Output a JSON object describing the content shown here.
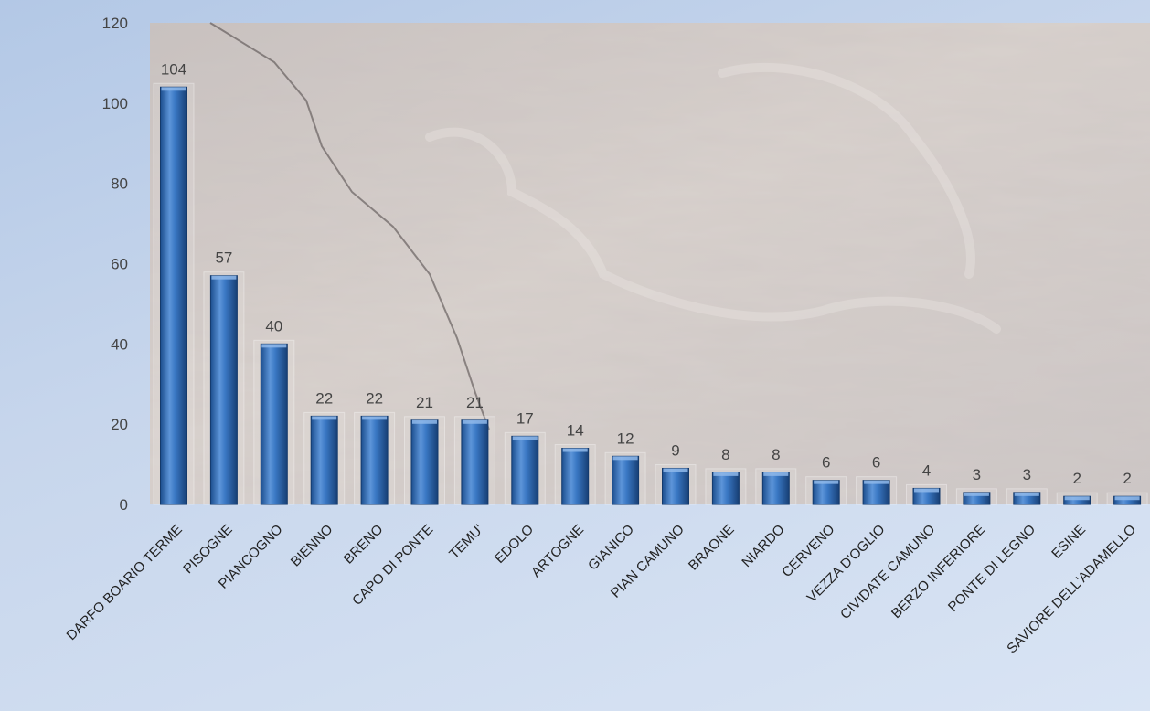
{
  "chart_data": {
    "type": "bar",
    "categories": [
      "DARFO BOARIO TERME",
      "PISOGNE",
      "PIANCOGNO",
      "BIENNO",
      "BRENO",
      "CAPO DI PONTE",
      "TEMU'",
      "EDOLO",
      "ARTOGNE",
      "GIANICO",
      "PIAN CAMUNO",
      "BRAONE",
      "NIARDO",
      "CERVENO",
      "VEZZA D'OGLIO",
      "CIVIDATE CAMUNO",
      "BERZO INFERIORE",
      "PONTE DI LEGNO",
      "ESINE",
      "SAVIORE DELL'ADAMELLO"
    ],
    "values": [
      104,
      57,
      40,
      22,
      22,
      21,
      21,
      17,
      14,
      12,
      9,
      8,
      8,
      6,
      6,
      4,
      3,
      3,
      2,
      2
    ],
    "data_labels": [
      "104",
      "57",
      "40",
      "22",
      "22",
      "21",
      "21",
      "17",
      "14",
      "12",
      "9",
      "8",
      "8",
      "6",
      "6",
      "4",
      "3",
      "3",
      "2",
      "2"
    ],
    "title": "",
    "xlabel": "",
    "ylabel": "",
    "ylim": [
      0,
      120
    ],
    "yticks": [
      "0",
      "20",
      "40",
      "60",
      "80",
      "100",
      "120"
    ],
    "grid": false,
    "legend": "none",
    "bar_color": "#2f6db5",
    "bar_highlight": "#8fb8ea",
    "plot_background": "textured stone"
  }
}
